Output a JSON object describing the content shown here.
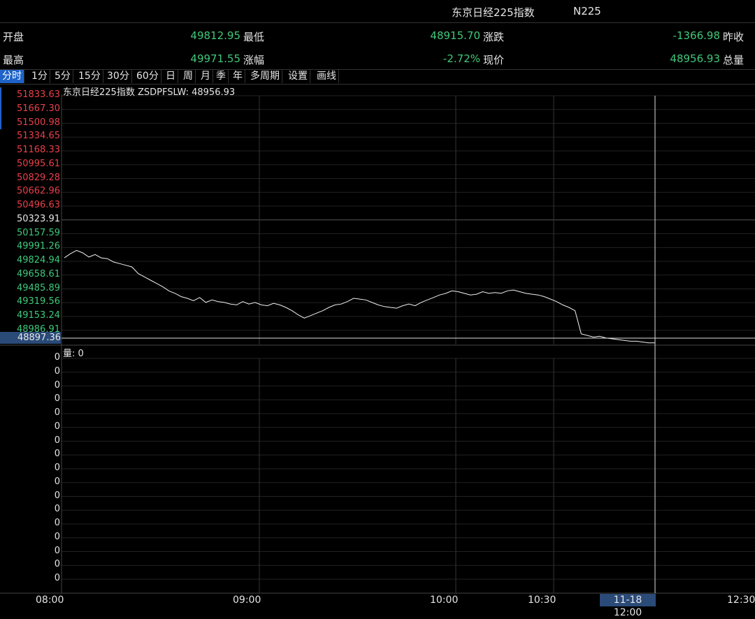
{
  "header": {
    "title": "东京日经225指数",
    "code": "N225"
  },
  "quote": {
    "open": {
      "label": "开盘",
      "value": "49812.95"
    },
    "high": {
      "label": "最高",
      "value": "49971.55"
    },
    "low": {
      "label": "最低",
      "value": "48915.70"
    },
    "pct": {
      "label": "涨幅",
      "value": "-2.72%"
    },
    "change": {
      "label": "涨跌",
      "value": "-1366.98"
    },
    "last": {
      "label": "现价",
      "value": "48956.93"
    },
    "prev_close": {
      "label": "昨收"
    },
    "volume": {
      "label": "总量"
    }
  },
  "tabs": [
    "分时",
    "1分",
    "5分",
    "15分",
    "30分",
    "60分",
    "日",
    "周",
    "月",
    "季",
    "年",
    "多周期",
    "设置",
    "画线"
  ],
  "active_tab": "分时",
  "price_panel": {
    "title": "东京日经225指数  ZSDPFSLW: 48956.93",
    "y_ticks": [
      "51833.63",
      "51667.30",
      "51500.98",
      "51334.65",
      "51168.33",
      "50995.61",
      "50829.28",
      "50662.96",
      "50496.63",
      "50323.91",
      "50157.59",
      "49991.26",
      "49824.94",
      "49658.61",
      "49485.89",
      "49319.56",
      "49153.24",
      "48986.91"
    ],
    "current_price_label": "48897.36"
  },
  "volume_panel": {
    "title": "量: 0",
    "y_ticks": [
      "0",
      "0",
      "0",
      "0",
      "0",
      "0",
      "0",
      "0",
      "0",
      "0",
      "0",
      "0",
      "0",
      "0",
      "0",
      "0",
      "0"
    ]
  },
  "x_labels": [
    "08:00",
    "09:00",
    "10:00",
    "10:30",
    "12:30"
  ],
  "cursor_time": "11-18 12:00",
  "chart_data": {
    "type": "line",
    "title": "东京日经225指数",
    "x_range": [
      "08:00",
      "12:30"
    ],
    "y_range": [
      48897.36,
      51833.63
    ],
    "prev_close": 50323.91,
    "series": [
      {
        "values": [
          49870,
          49920,
          49960,
          49930,
          49880,
          49910,
          49870,
          49860,
          49820,
          49800,
          49780,
          49760,
          49680,
          49640,
          49600,
          49560,
          49520,
          49470,
          49440,
          49400,
          49380,
          49350,
          49390,
          49330,
          49360,
          49340,
          49330,
          49310,
          49300,
          49340,
          49310,
          49330,
          49300,
          49290,
          49320,
          49300,
          49270,
          49230,
          49180,
          49140,
          49170,
          49200,
          49230,
          49270,
          49300,
          49310,
          49340,
          49380,
          49370,
          49360,
          49330,
          49300,
          49280,
          49270,
          49260,
          49290,
          49310,
          49290,
          49330,
          49360,
          49390,
          49420,
          49440,
          49470,
          49460,
          49440,
          49420,
          49430,
          49460,
          49440,
          49450,
          49440,
          49470,
          49480,
          49460,
          49440,
          49430,
          49420,
          49400,
          49370,
          49340,
          49300,
          49270,
          49230,
          48950,
          48930,
          48910,
          48920,
          48900,
          48890,
          48880,
          48870,
          48860,
          48860,
          48850,
          48840,
          48840
        ]
      }
    ]
  }
}
